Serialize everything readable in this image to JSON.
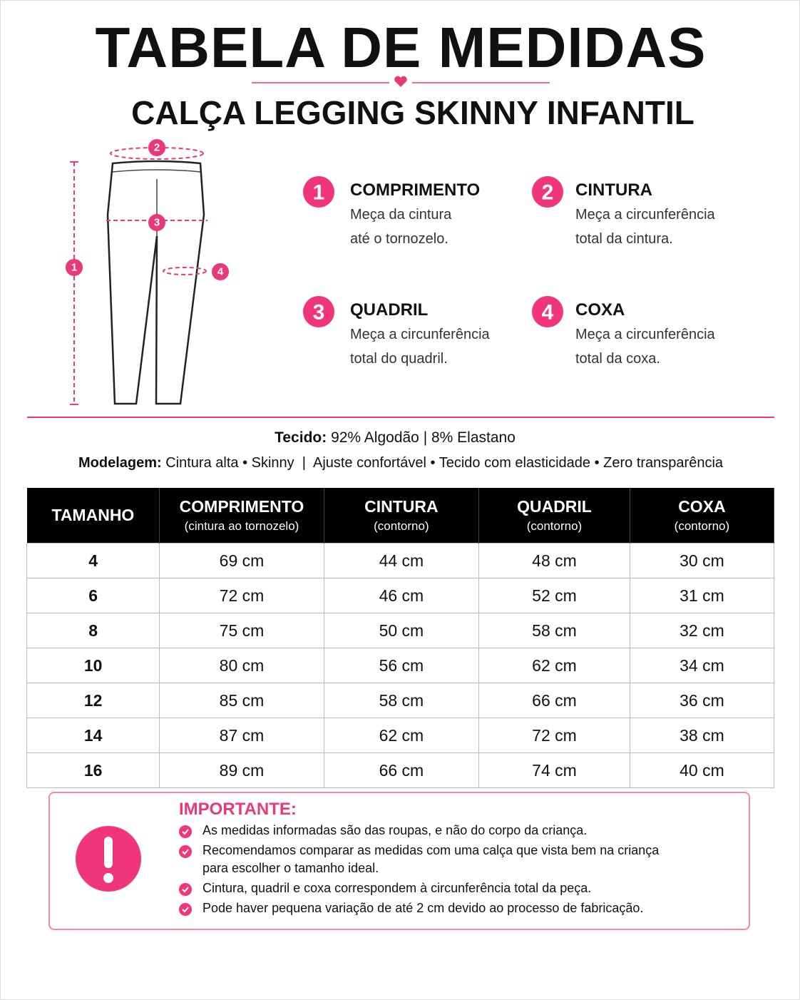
{
  "header": {
    "title": "TABELA DE MEDIDAS",
    "subtitle": "CALÇA LEGGING SKINNY INFANTIL"
  },
  "measures": [
    {
      "number": "1",
      "title": "COMPRIMENTO",
      "desc": [
        "Meça da cintura",
        "até o tornozelo."
      ]
    },
    {
      "number": "2",
      "title": "CINTURA",
      "desc": [
        "Meça a circunferência",
        "total da cintura."
      ]
    },
    {
      "number": "3",
      "title": "QUADRIL",
      "desc": [
        "Meça a circunferência",
        "total do quadril."
      ]
    },
    {
      "number": "4",
      "title": "COXA",
      "desc": [
        "Meça a circunferência",
        "total da coxa."
      ]
    }
  ],
  "info": {
    "fabric_label": "Tecido:",
    "fabric": "92% Algodão | 8% Elastano",
    "model_label": "Modelagem:",
    "model": "Cintura alta • Skinny  |  Ajuste confortável • Tecido com elasticidade • Zero transparência"
  },
  "table": {
    "header": [
      {
        "title": "TAMANHO"
      },
      {
        "title": "COMPRIMENTO",
        "sub": "(cintura ao tornozelo)"
      },
      {
        "title": "CINTURA",
        "sub": "(contorno)"
      },
      {
        "title": "QUADRIL",
        "sub": "(contorno)"
      },
      {
        "title": "COXA",
        "sub": "(contorno)"
      }
    ],
    "rows": [
      [
        "4",
        "69 cm",
        "44 cm",
        "48 cm",
        "30 cm"
      ],
      [
        "6",
        "72 cm",
        "46 cm",
        "52 cm",
        "31 cm"
      ],
      [
        "8",
        "75 cm",
        "50 cm",
        "58 cm",
        "32 cm"
      ],
      [
        "10",
        "80 cm",
        "56 cm",
        "62 cm",
        "34 cm"
      ],
      [
        "12",
        "85 cm",
        "58 cm",
        "66 cm",
        "36 cm"
      ],
      [
        "14",
        "87 cm",
        "62 cm",
        "72 cm",
        "38 cm"
      ],
      [
        "16",
        "89 cm",
        "66 cm",
        "74 cm",
        "40 cm"
      ]
    ]
  },
  "important": {
    "title": "IMPORTANTE:",
    "items": [
      [
        "As medidas informadas são das roupas, e não do corpo da criança."
      ],
      [
        "Recomendamos comparar as medidas com uma calça que vista bem na criança",
        "para escolher o tamanho ideal."
      ],
      [
        "Cintura, quadril e coxa correspondem à circunferência total da peça."
      ],
      [
        "Pode haver pequena variação de até 2 cm devido ao processo de fabricação."
      ]
    ]
  }
}
